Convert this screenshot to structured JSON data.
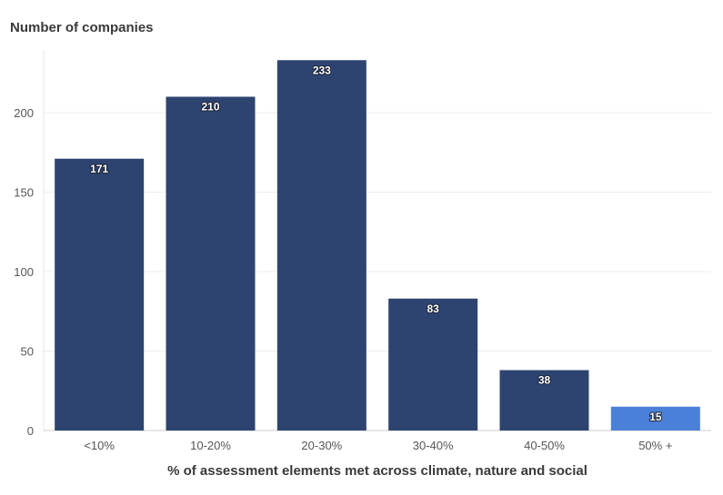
{
  "chart_data": {
    "type": "bar",
    "ylabel": "Number of companies",
    "xlabel": "% of assessment elements met across climate, nature and social",
    "categories": [
      "<10%",
      "10-20%",
      "20-30%",
      "30-40%",
      "40-50%",
      "50% +"
    ],
    "values": [
      171,
      210,
      233,
      83,
      38,
      15
    ],
    "ylim": [
      0,
      240
    ],
    "yticks": [
      0,
      50,
      100,
      150,
      200
    ],
    "grid": true,
    "colors": {
      "default": "#2e4470",
      "highlight": "#4a80d8",
      "highlight_index": 5
    }
  }
}
